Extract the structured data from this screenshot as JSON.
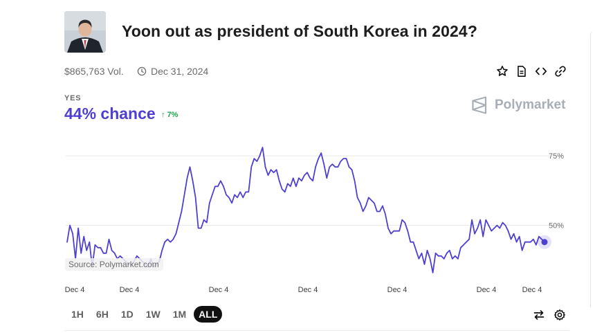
{
  "market": {
    "title": "Yoon out as president of South Korea in 2024?",
    "volume": "$865,763 Vol.",
    "end_date": "Dec 31, 2024",
    "outcome": "YES",
    "chance": "44% chance",
    "change": "7%",
    "brand": "Polymarket",
    "accent_color": "#4d3fd0",
    "up_color": "#1ba34a"
  },
  "actions": [
    "star-icon",
    "document-icon",
    "embed-icon",
    "link-icon"
  ],
  "ranges": {
    "items": [
      "1H",
      "6H",
      "1D",
      "1W",
      "1M",
      "ALL"
    ],
    "active": "ALL"
  },
  "tools": [
    "swap-icon",
    "settings-icon"
  ],
  "chart_data": {
    "type": "line",
    "source_label": "Source: Polymarket.com",
    "x_tick_labels": [
      "Dec 4",
      "Dec 4",
      "Dec 4",
      "Dec 4",
      "Dec 4",
      "Dec 4",
      "Dec 4"
    ],
    "y_tick_labels": [
      "75%",
      "50%"
    ],
    "y_ticks": [
      75,
      50
    ],
    "ylim": [
      31,
      80
    ],
    "grid": true,
    "series": [
      {
        "color": "#4d3fd0",
        "values": [
          44,
          50,
          47,
          38,
          49,
          40,
          46,
          41,
          44,
          35,
          43,
          42,
          42,
          40,
          40,
          45,
          41,
          40,
          38,
          39,
          38,
          37,
          36,
          36,
          37,
          39,
          38,
          37,
          36,
          35,
          38,
          35,
          36,
          37,
          41,
          44,
          45,
          44,
          45,
          47,
          51,
          55,
          61,
          67,
          71,
          66,
          60,
          49,
          49,
          52,
          51,
          58,
          61,
          64,
          64,
          66,
          64,
          61,
          60,
          58,
          61,
          60,
          62,
          60,
          62,
          62,
          71,
          74,
          73,
          75,
          78,
          71,
          68,
          70,
          69,
          70,
          66,
          63,
          62,
          65,
          64,
          67,
          64,
          67,
          66,
          68,
          69,
          67,
          66,
          71,
          74,
          76,
          72,
          67,
          71,
          72,
          71,
          71,
          73,
          74,
          74,
          71,
          70,
          66,
          60,
          58,
          55,
          57,
          60,
          59,
          58,
          55,
          55,
          57,
          54,
          49,
          47,
          48,
          48,
          48,
          52,
          51,
          48,
          44,
          44,
          41,
          38,
          40,
          36,
          41,
          38,
          33,
          40,
          39,
          39,
          38,
          40,
          41,
          38,
          39,
          38,
          42,
          43,
          44,
          45,
          52,
          47,
          49,
          52,
          46,
          52,
          50,
          48,
          49,
          50,
          49,
          51,
          50,
          48,
          45,
          47,
          44,
          46,
          41,
          44,
          44,
          44,
          45,
          43,
          46,
          45,
          44
        ]
      }
    ]
  }
}
